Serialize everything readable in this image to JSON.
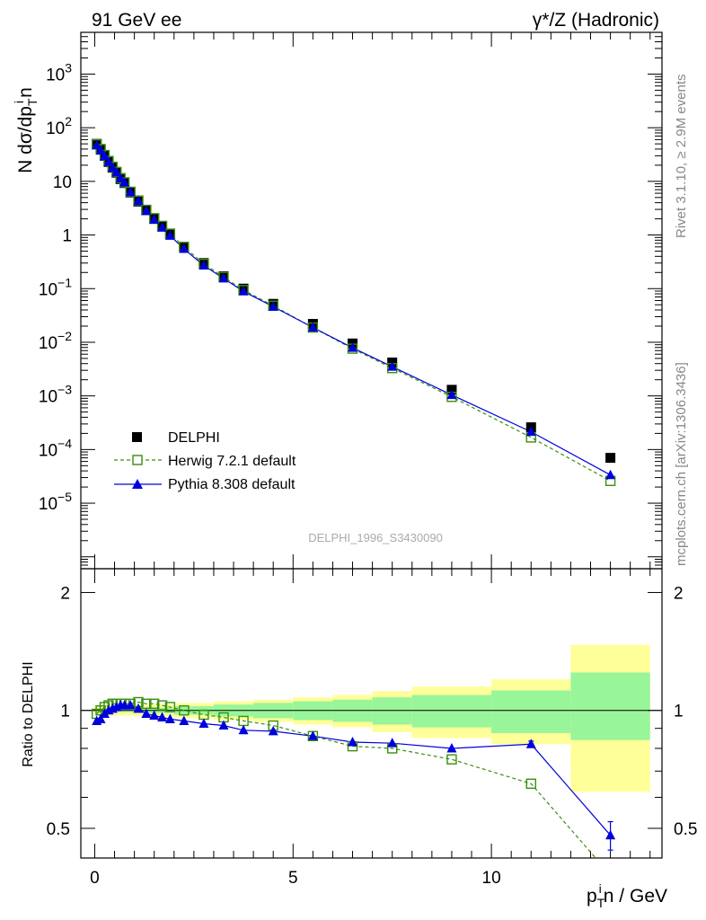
{
  "header": {
    "left_title": "91 GeV ee",
    "right_title": "γ*/Z (Hadronic)"
  },
  "side_labels": {
    "rivet": "Rivet 3.1.10, ≥ 2.9M events",
    "mcplots": "mcplots.cern.ch [arXiv:1306.3436]"
  },
  "analysis_label": "DELPHI_1996_S3430090",
  "colors": {
    "data": "#000000",
    "herwig": "#3a8f0e",
    "pythia": "#0000dd",
    "band_outer": "#ffff99",
    "band_inner": "#99f599"
  },
  "chart_data": [
    {
      "type": "scatter",
      "panel": "main",
      "title": "",
      "ylabel": "N dσ/dp_T^i n",
      "ylabel_parts": {
        "main": "N dσ/dp",
        "sub": "T",
        "sup": "i",
        "tail": "n"
      },
      "xlim": [
        -0.35,
        14.3
      ],
      "ylim": [
        6e-07,
        6000
      ],
      "y_scale": "log",
      "y_ticks": [
        {
          "value": 1e-05,
          "label": "10",
          "exp": "−5"
        },
        {
          "value": 0.0001,
          "label": "10",
          "exp": "−4"
        },
        {
          "value": 0.001,
          "label": "10",
          "exp": "−3"
        },
        {
          "value": 0.01,
          "label": "10",
          "exp": "−2"
        },
        {
          "value": 0.1,
          "label": "10",
          "exp": "−1"
        },
        {
          "value": 1,
          "label": "1",
          "exp": ""
        },
        {
          "value": 10,
          "label": "10",
          "exp": ""
        },
        {
          "value": 100,
          "label": "10",
          "exp": "2"
        },
        {
          "value": 1000,
          "label": "10",
          "exp": "3"
        }
      ],
      "x": [
        0.05,
        0.15,
        0.25,
        0.35,
        0.45,
        0.55,
        0.65,
        0.75,
        0.9,
        1.1,
        1.3,
        1.5,
        1.7,
        1.9,
        2.25,
        2.75,
        3.25,
        3.75,
        4.5,
        5.5,
        6.5,
        7.5,
        9.0,
        11.0,
        13.0
      ],
      "series": [
        {
          "name": "DELPHI",
          "marker": "square",
          "values": [
            50,
            40,
            30,
            23,
            18,
            14.5,
            11,
            9.3,
            6.2,
            4.2,
            2.9,
            2.0,
            1.45,
            1.05,
            0.6,
            0.3,
            0.17,
            0.1,
            0.052,
            0.022,
            0.0095,
            0.0042,
            0.0013,
            0.00026,
            7e-05
          ]
        },
        {
          "name": "Herwig 7.2.1 default",
          "marker": "open-square",
          "line": "dashed",
          "values": [
            49,
            40,
            31,
            24,
            18.7,
            15,
            11.5,
            9.6,
            6.4,
            4.4,
            2.95,
            2.06,
            1.48,
            1.06,
            0.6,
            0.29,
            0.165,
            0.094,
            0.048,
            0.0188,
            0.0076,
            0.0033,
            0.00096,
            0.000168,
            2.6e-05
          ]
        },
        {
          "name": "Pythia 8.308 default",
          "marker": "triangle",
          "line": "solid",
          "values": [
            47,
            37.5,
            29.5,
            23,
            18,
            14.6,
            11.3,
            9.5,
            6.3,
            4.3,
            2.8,
            1.92,
            1.37,
            0.97,
            0.55,
            0.27,
            0.155,
            0.089,
            0.046,
            0.0189,
            0.0079,
            0.0035,
            0.00104,
            0.000214,
            3.35e-05
          ]
        }
      ],
      "legend": "middle-left",
      "grid": false
    },
    {
      "type": "line",
      "panel": "ratio",
      "title": "",
      "xlabel": "p_T^i n / GeV",
      "xlabel_parts": {
        "main": "p",
        "sub": "T",
        "sup": "i",
        "tail": "n / GeV"
      },
      "ylabel": "Ratio to DELPHI",
      "xlim": [
        -0.35,
        14.3
      ],
      "ylim": [
        0.42,
        2.3
      ],
      "y_scale": "log",
      "x_ticks": [
        0,
        5,
        10
      ],
      "y_ticks": [
        0.5,
        1,
        2
      ],
      "x": [
        0.05,
        0.15,
        0.25,
        0.35,
        0.45,
        0.55,
        0.65,
        0.75,
        0.9,
        1.1,
        1.3,
        1.5,
        1.7,
        1.9,
        2.25,
        2.75,
        3.25,
        3.75,
        4.5,
        5.5,
        6.5,
        7.5,
        9.0,
        11.0,
        13.0
      ],
      "series": [
        {
          "name": "Herwig 7.2.1 default",
          "values": [
            0.98,
            1.0,
            1.02,
            1.03,
            1.04,
            1.04,
            1.04,
            1.04,
            1.04,
            1.05,
            1.04,
            1.04,
            1.03,
            1.02,
            1.0,
            0.975,
            0.96,
            0.94,
            0.915,
            0.86,
            0.81,
            0.8,
            0.75,
            0.65,
            0.38
          ]
        },
        {
          "name": "Pythia 8.308 default",
          "values": [
            0.94,
            0.95,
            0.98,
            1.0,
            1.01,
            1.02,
            1.03,
            1.03,
            1.03,
            1.01,
            0.98,
            0.97,
            0.96,
            0.95,
            0.94,
            0.925,
            0.915,
            0.89,
            0.885,
            0.86,
            0.83,
            0.825,
            0.8,
            0.82,
            0.48
          ]
        }
      ],
      "error_bars": {
        "Pythia 8.308 default": [
          0,
          0,
          0,
          0,
          0,
          0,
          0,
          0,
          0,
          0,
          0,
          0,
          0,
          0,
          0,
          0,
          0,
          0,
          0,
          0,
          0,
          0,
          0,
          0.015,
          0.04
        ]
      },
      "uncertainty_bands": [
        {
          "x0": 0.0,
          "x1": 1.0,
          "inner": [
            0.99,
            1.01
          ],
          "outer": [
            0.97,
            1.03
          ]
        },
        {
          "x0": 1.0,
          "x1": 2.0,
          "inner": [
            0.985,
            1.015
          ],
          "outer": [
            0.965,
            1.035
          ]
        },
        {
          "x0": 2.0,
          "x1": 3.0,
          "inner": [
            0.975,
            1.025
          ],
          "outer": [
            0.955,
            1.045
          ]
        },
        {
          "x0": 3.0,
          "x1": 4.0,
          "inner": [
            0.965,
            1.035
          ],
          "outer": [
            0.945,
            1.055
          ]
        },
        {
          "x0": 4.0,
          "x1": 5.0,
          "inner": [
            0.955,
            1.045
          ],
          "outer": [
            0.935,
            1.065
          ]
        },
        {
          "x0": 5.0,
          "x1": 6.0,
          "inner": [
            0.945,
            1.055
          ],
          "outer": [
            0.92,
            1.08
          ]
        },
        {
          "x0": 6.0,
          "x1": 7.0,
          "inner": [
            0.935,
            1.065
          ],
          "outer": [
            0.905,
            1.095
          ]
        },
        {
          "x0": 7.0,
          "x1": 8.0,
          "inner": [
            0.92,
            1.08
          ],
          "outer": [
            0.88,
            1.12
          ]
        },
        {
          "x0": 8.0,
          "x1": 10.0,
          "inner": [
            0.905,
            1.095
          ],
          "outer": [
            0.85,
            1.15
          ]
        },
        {
          "x0": 10.0,
          "x1": 12.0,
          "inner": [
            0.875,
            1.125
          ],
          "outer": [
            0.82,
            1.2
          ]
        },
        {
          "x0": 12.0,
          "x1": 14.0,
          "inner": [
            0.84,
            1.25
          ],
          "outer": [
            0.62,
            1.47
          ]
        }
      ],
      "reference_line": 1,
      "grid": false
    }
  ]
}
